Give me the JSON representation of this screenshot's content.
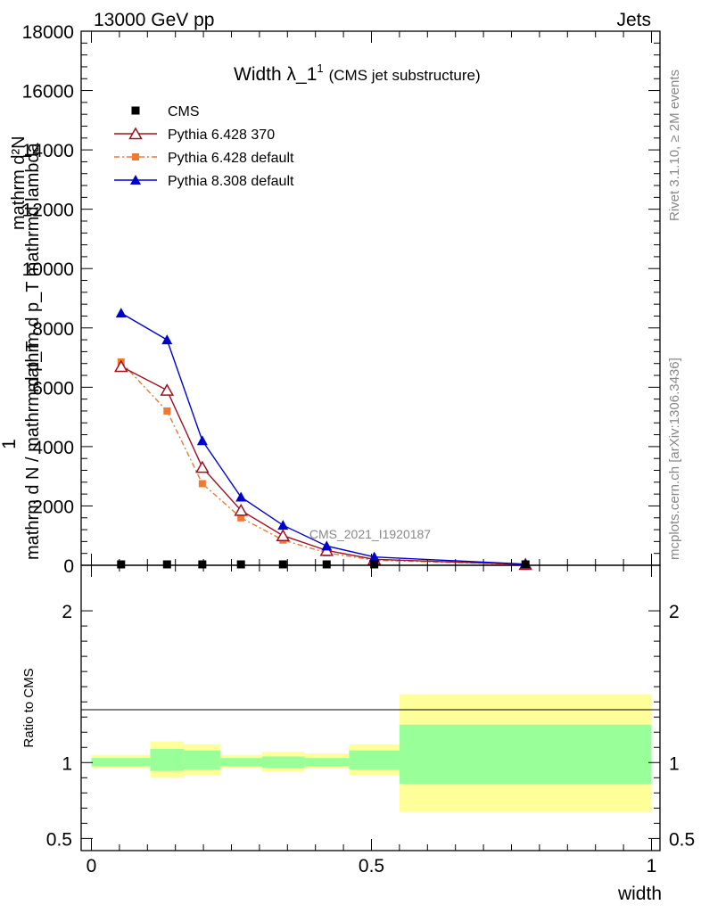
{
  "header": {
    "energy": "13000 GeV pp",
    "group": "Jets"
  },
  "side": {
    "rivet": "Rivet 3.1.10, ≥ 2M events",
    "source": "mcplots.cern.ch [arXiv:1306.3436]"
  },
  "colors": {
    "cms": "#000000",
    "py6_370": "#a01020",
    "py6_default": "#f07830",
    "py8_default": "#0000d0",
    "band_inner": "#99ff99",
    "band_outer": "#ffff99"
  },
  "chart_data": [
    {
      "type": "line",
      "title": "Width λ_1",
      "title_sup": "1",
      "subtitle": "(CMS jet substructure)",
      "watermark": "CMS_2021_I1920187",
      "ylabel_numerator": "mathrm d²N",
      "ylabel_denominator": "mathrm d p_T mathrmd lambda",
      "ylabel_prefix_num": "1",
      "ylabel_prefix_den": "mathrm d N / mathrm d p_T",
      "ylim": [
        0,
        18000
      ],
      "y_ticks": [
        0,
        2000,
        4000,
        6000,
        8000,
        10000,
        12000,
        14000,
        16000,
        18000
      ],
      "y_tick_labels": [
        "0",
        "2000",
        "4000",
        "6000",
        "8000",
        "10000",
        "12000",
        "14000",
        "16000",
        "18000"
      ],
      "xlim": [
        0,
        1
      ],
      "legend_position": "top-left",
      "series": [
        {
          "name": "CMS",
          "marker": "square",
          "x": [
            0.053,
            0.135,
            0.198,
            0.267,
            0.342,
            0.42,
            0.505,
            0.775
          ],
          "y": [
            0,
            0,
            0,
            0,
            0,
            0,
            0,
            0
          ]
        },
        {
          "name": "Pythia 6.428 370",
          "marker": "open-triangle",
          "x": [
            0.053,
            0.135,
            0.198,
            0.267,
            0.342,
            0.42,
            0.505,
            0.775
          ],
          "y": [
            6700,
            5900,
            3300,
            1850,
            1000,
            500,
            200,
            30
          ]
        },
        {
          "name": "Pythia 6.428 default",
          "marker": "filled-square",
          "dash": true,
          "x": [
            0.053,
            0.135,
            0.198,
            0.267,
            0.342,
            0.42,
            0.505,
            0.775
          ],
          "y": [
            6850,
            5200,
            2750,
            1600,
            850,
            420,
            170,
            25
          ]
        },
        {
          "name": "Pythia 8.308 default",
          "marker": "filled-triangle",
          "x": [
            0.053,
            0.135,
            0.198,
            0.267,
            0.342,
            0.42,
            0.505,
            0.775
          ],
          "y": [
            8500,
            7600,
            4200,
            2300,
            1350,
            650,
            280,
            40
          ]
        }
      ]
    },
    {
      "type": "area",
      "ylabel": "Ratio to CMS",
      "xlabel": "width",
      "ylim": [
        0.42,
        2.3
      ],
      "y_ticks": [
        0.5,
        1,
        2
      ],
      "y_tick_labels": [
        "0.5",
        "1",
        "2"
      ],
      "xlim": [
        0,
        1
      ],
      "x_ticks": [
        0,
        0.5,
        1
      ],
      "x_tick_labels": [
        "0",
        "0.5",
        "1"
      ],
      "bins": [
        {
          "lo": 0.0,
          "hi": 0.105,
          "inner": [
            0.975,
            1.03
          ],
          "outer": [
            0.965,
            1.05
          ]
        },
        {
          "lo": 0.105,
          "hi": 0.165,
          "inner": [
            0.945,
            1.09
          ],
          "outer": [
            0.9,
            1.14
          ]
        },
        {
          "lo": 0.165,
          "hi": 0.23,
          "inner": [
            0.955,
            1.08
          ],
          "outer": [
            0.915,
            1.12
          ]
        },
        {
          "lo": 0.23,
          "hi": 0.305,
          "inner": [
            0.975,
            1.03
          ],
          "outer": [
            0.965,
            1.05
          ]
        },
        {
          "lo": 0.305,
          "hi": 0.38,
          "inner": [
            0.965,
            1.04
          ],
          "outer": [
            0.94,
            1.07
          ]
        },
        {
          "lo": 0.38,
          "hi": 0.46,
          "inner": [
            0.975,
            1.03
          ],
          "outer": [
            0.96,
            1.06
          ]
        },
        {
          "lo": 0.46,
          "hi": 0.55,
          "inner": [
            0.955,
            1.08
          ],
          "outer": [
            0.915,
            1.12
          ]
        },
        {
          "lo": 0.55,
          "hi": 1.0,
          "inner": [
            0.86,
            1.25
          ],
          "outer": [
            0.675,
            1.45
          ]
        }
      ]
    }
  ]
}
